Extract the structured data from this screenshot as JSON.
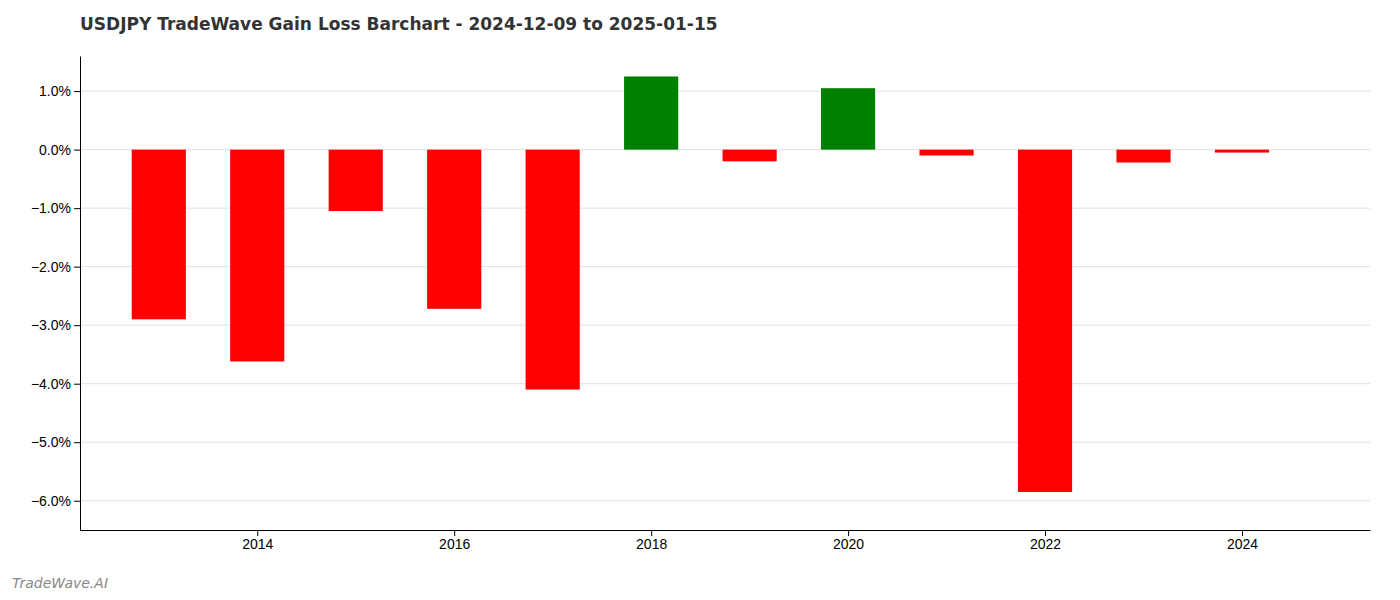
{
  "chart_data": {
    "type": "bar",
    "title": "USDJPY TradeWave Gain Loss Barchart - 2024-12-09 to 2025-01-15",
    "annotations": [
      "TradeWave.AI"
    ],
    "x": [
      2013,
      2014,
      2015,
      2016,
      2017,
      2018,
      2019,
      2020,
      2021,
      2022,
      2023,
      2024
    ],
    "values": [
      -2.9,
      -3.62,
      -1.05,
      -2.72,
      -4.1,
      1.25,
      -0.2,
      1.05,
      -0.1,
      -5.85,
      -0.22,
      -0.05
    ],
    "colors": [
      "#ff0000",
      "#ff0000",
      "#ff0000",
      "#ff0000",
      "#ff0000",
      "#008000",
      "#ff0000",
      "#008000",
      "#ff0000",
      "#ff0000",
      "#ff0000",
      "#ff0000"
    ],
    "xlim": [
      2012.2,
      2025.3
    ],
    "xticks": [
      2014,
      2016,
      2018,
      2020,
      2022,
      2024
    ],
    "ylim": [
      -6.5,
      1.6
    ],
    "yticks": [
      {
        "value": 1.0,
        "label": "1.0%"
      },
      {
        "value": 0.0,
        "label": "0.0%"
      },
      {
        "value": -1.0,
        "label": "−1.0%"
      },
      {
        "value": -2.0,
        "label": "−2.0%"
      },
      {
        "value": -3.0,
        "label": "−3.0%"
      },
      {
        "value": -4.0,
        "label": "−4.0%"
      },
      {
        "value": -5.0,
        "label": "−5.0%"
      },
      {
        "value": -6.0,
        "label": "−6.0%"
      }
    ],
    "grid": true
  }
}
